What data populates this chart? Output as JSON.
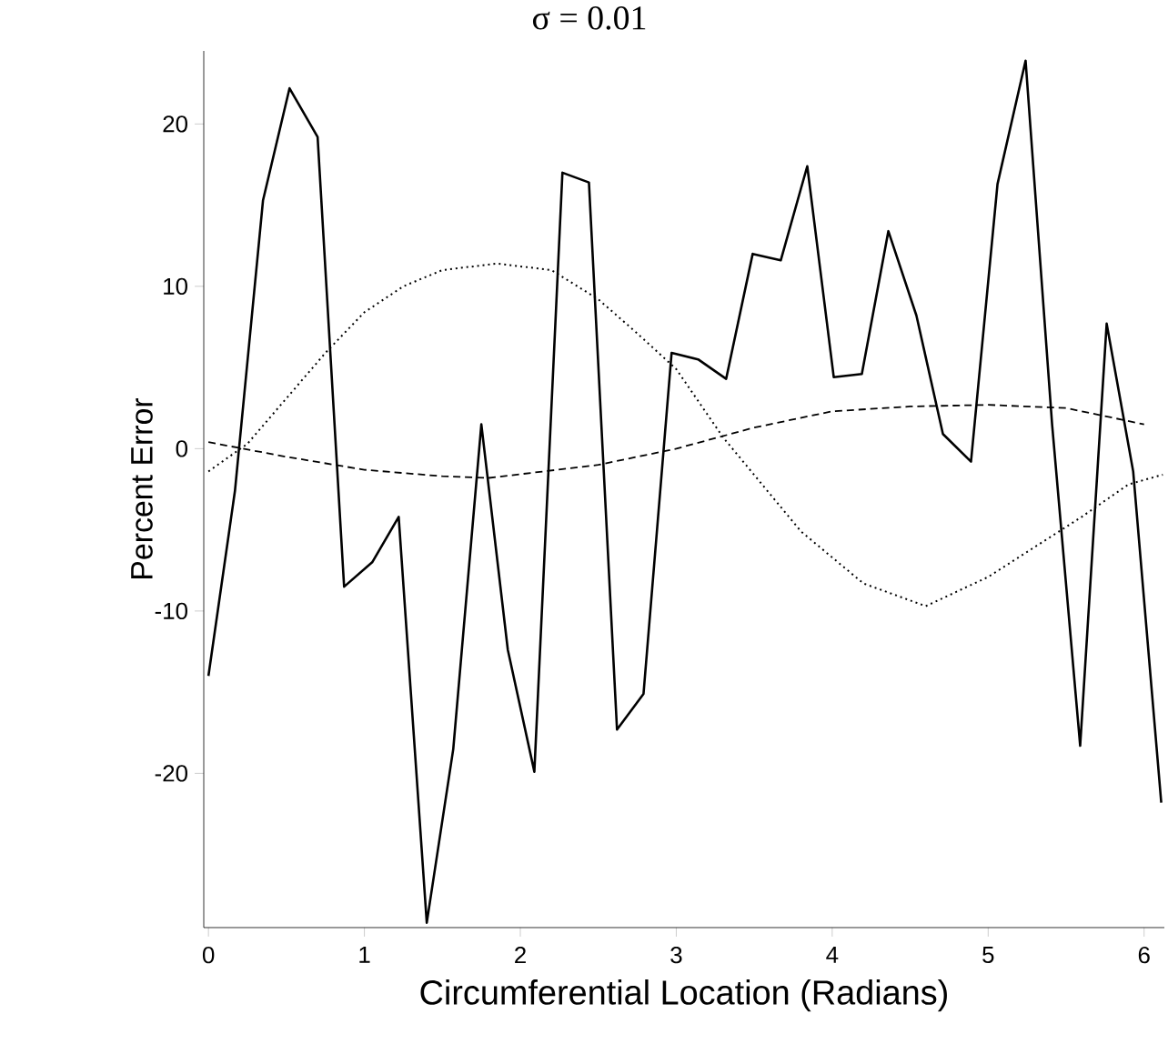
{
  "chart_data": {
    "type": "line",
    "title": "σ = 0.01",
    "xlabel": "Circumferential  Location  (Radians)",
    "ylabel": "Percent  Error",
    "xlim": [
      -0.03,
      6.13
    ],
    "ylim": [
      -29.5,
      24.5
    ],
    "xticks": [
      0,
      1,
      2,
      3,
      4,
      5,
      6
    ],
    "yticks": [
      -20,
      -10,
      0,
      10,
      20
    ],
    "series": [
      {
        "color": "#000000",
        "line_style": "solid",
        "x": [
          0,
          0.17,
          0.35,
          0.52,
          0.7,
          0.87,
          1.05,
          1.22,
          1.4,
          1.57,
          1.75,
          1.92,
          2.09,
          2.27,
          2.44,
          2.62,
          2.79,
          2.97,
          3.14,
          3.32,
          3.49,
          3.67,
          3.84,
          4.01,
          4.19,
          4.36,
          4.54,
          4.71,
          4.89,
          5.06,
          5.24,
          5.41,
          5.59,
          5.76,
          5.93,
          6.11
        ],
        "values": [
          -14,
          -2.6,
          15.3,
          22.2,
          19.2,
          -8.5,
          -7.0,
          -4.2,
          -29.2,
          -18.5,
          1.5,
          -12.4,
          -19.9,
          17.0,
          16.4,
          -17.3,
          -15.1,
          5.9,
          5.5,
          4.3,
          12.0,
          11.6,
          17.4,
          4.4,
          4.6,
          13.4,
          8.2,
          0.9,
          -0.8,
          16.3,
          23.9,
          1.5,
          -18.3,
          7.7,
          -1.4,
          -21.8
        ]
      },
      {
        "color": "#000000",
        "line_style": "dotted",
        "x": [
          0,
          0.25,
          0.5,
          0.75,
          1.0,
          1.25,
          1.5,
          1.85,
          2.2,
          2.5,
          2.75,
          3.0,
          3.3,
          3.8,
          4.2,
          4.6,
          5.0,
          5.6,
          5.9,
          6.12
        ],
        "values": [
          -1.4,
          0.3,
          3.1,
          5.9,
          8.4,
          10.0,
          11.0,
          11.4,
          11.0,
          9.2,
          7.1,
          4.9,
          0.7,
          -5.1,
          -8.3,
          -9.7,
          -7.9,
          -4.2,
          -2.2,
          -1.6
        ]
      },
      {
        "color": "#000000",
        "line_style": "dashed",
        "x": [
          0,
          0.5,
          1.0,
          1.5,
          1.8,
          2.5,
          3.0,
          3.5,
          4.0,
          4.5,
          5.0,
          5.5,
          6.0
        ],
        "values": [
          0.4,
          -0.5,
          -1.3,
          -1.7,
          -1.8,
          -1.0,
          0.0,
          1.3,
          2.3,
          2.6,
          2.7,
          2.5,
          1.5
        ]
      }
    ]
  }
}
